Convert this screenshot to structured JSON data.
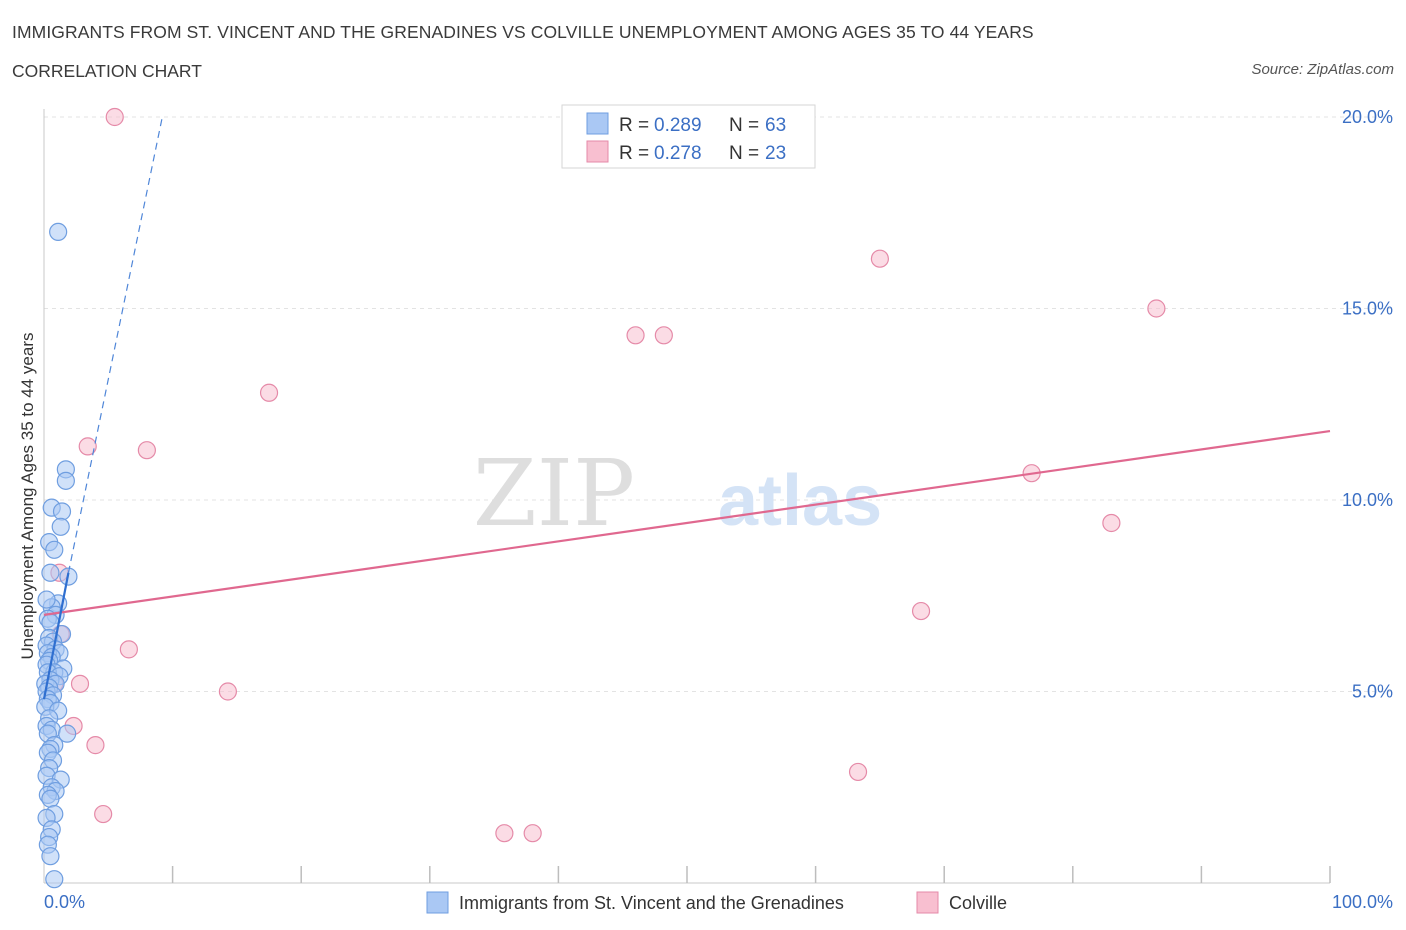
{
  "header": {
    "title": "IMMIGRANTS FROM ST. VINCENT AND THE GRENADINES VS COLVILLE UNEMPLOYMENT AMONG AGES 35 TO 44 YEARS",
    "subtitle": "CORRELATION CHART",
    "source": "Source: ZipAtlas.com"
  },
  "legend": {
    "r_label": "R = ",
    "n_label": "N = ",
    "entries": [
      {
        "r": "0.289",
        "n": "63",
        "fill": "#aac8f4",
        "stroke": "#6f9ee0"
      },
      {
        "r": "0.278",
        "n": "23",
        "fill": "#f8bfd0",
        "stroke": "#e58aa8"
      }
    ]
  },
  "watermark": {
    "zip": "ZIP",
    "atlas": "atlas"
  },
  "chart_data": {
    "type": "scatter",
    "title": "IMMIGRANTS FROM ST. VINCENT AND THE GRENADINES VS COLVILLE UNEMPLOYMENT AMONG AGES 35 TO 44 YEARS",
    "xlabel": "",
    "ylabel": "Unemployment Among Ages 35 to 44 years",
    "xlim": [
      0,
      100
    ],
    "ylim": [
      0,
      20
    ],
    "x_ticks": [
      "0.0%",
      "100.0%"
    ],
    "y_ticks": [
      {
        "value": 5,
        "label": "5.0%"
      },
      {
        "value": 10,
        "label": "10.0%"
      },
      {
        "value": 15,
        "label": "15.0%"
      },
      {
        "value": 20,
        "label": "20.0%"
      }
    ],
    "grid": true,
    "series": [
      {
        "name": "Immigrants from St. Vincent and the Grenadines",
        "color": "#6f9ee0",
        "fill": "#aac8f4",
        "trend_solid": {
          "x": [
            0,
            1.9
          ],
          "y": [
            4.8,
            8.1
          ]
        },
        "trend_dashed": {
          "x": [
            1.9,
            9.2
          ],
          "y": [
            8.1,
            20.0
          ]
        },
        "points": [
          [
            1.1,
            17.0
          ],
          [
            1.7,
            10.8
          ],
          [
            1.7,
            10.5
          ],
          [
            0.6,
            9.8
          ],
          [
            1.4,
            9.7
          ],
          [
            1.3,
            9.3
          ],
          [
            0.4,
            8.9
          ],
          [
            0.8,
            8.7
          ],
          [
            1.9,
            8.0
          ],
          [
            0.5,
            8.1
          ],
          [
            1.1,
            7.3
          ],
          [
            0.6,
            7.2
          ],
          [
            0.2,
            7.4
          ],
          [
            0.9,
            7.0
          ],
          [
            0.3,
            6.9
          ],
          [
            0.5,
            6.8
          ],
          [
            1.4,
            6.5
          ],
          [
            0.4,
            6.4
          ],
          [
            0.7,
            6.3
          ],
          [
            0.2,
            6.2
          ],
          [
            0.9,
            6.1
          ],
          [
            1.2,
            6.0
          ],
          [
            0.3,
            6.0
          ],
          [
            0.6,
            5.9
          ],
          [
            0.4,
            5.8
          ],
          [
            0.2,
            5.7
          ],
          [
            1.5,
            5.6
          ],
          [
            0.8,
            5.5
          ],
          [
            0.3,
            5.5
          ],
          [
            1.2,
            5.4
          ],
          [
            0.5,
            5.3
          ],
          [
            0.1,
            5.2
          ],
          [
            0.9,
            5.2
          ],
          [
            0.4,
            5.1
          ],
          [
            0.2,
            5.0
          ],
          [
            0.7,
            4.9
          ],
          [
            0.3,
            4.8
          ],
          [
            0.5,
            4.7
          ],
          [
            0.1,
            4.6
          ],
          [
            1.1,
            4.5
          ],
          [
            0.4,
            4.3
          ],
          [
            0.2,
            4.1
          ],
          [
            0.6,
            4.0
          ],
          [
            0.3,
            3.9
          ],
          [
            1.8,
            3.9
          ],
          [
            0.8,
            3.6
          ],
          [
            0.5,
            3.5
          ],
          [
            0.3,
            3.4
          ],
          [
            0.7,
            3.2
          ],
          [
            0.4,
            3.0
          ],
          [
            0.2,
            2.8
          ],
          [
            1.3,
            2.7
          ],
          [
            0.6,
            2.5
          ],
          [
            0.9,
            2.4
          ],
          [
            0.3,
            2.3
          ],
          [
            0.5,
            2.2
          ],
          [
            0.8,
            1.8
          ],
          [
            0.2,
            1.7
          ],
          [
            0.6,
            1.4
          ],
          [
            0.4,
            1.2
          ],
          [
            0.3,
            1.0
          ],
          [
            0.5,
            0.7
          ],
          [
            0.8,
            0.1
          ]
        ]
      },
      {
        "name": "Colville",
        "color": "#e58aa8",
        "fill": "#f8bfd0",
        "trend": {
          "x": [
            0,
            100
          ],
          "y": [
            7.0,
            11.8
          ]
        },
        "points": [
          [
            5.5,
            20.0
          ],
          [
            65.0,
            16.3
          ],
          [
            86.5,
            15.0
          ],
          [
            46.0,
            14.3
          ],
          [
            48.2,
            14.3
          ],
          [
            17.5,
            12.8
          ],
          [
            3.4,
            11.4
          ],
          [
            8.0,
            11.3
          ],
          [
            76.8,
            10.7
          ],
          [
            83.0,
            9.4
          ],
          [
            1.2,
            8.1
          ],
          [
            68.2,
            7.1
          ],
          [
            1.3,
            6.5
          ],
          [
            6.6,
            6.1
          ],
          [
            0.8,
            5.2
          ],
          [
            2.8,
            5.2
          ],
          [
            14.3,
            5.0
          ],
          [
            2.3,
            4.1
          ],
          [
            4.0,
            3.6
          ],
          [
            63.3,
            2.9
          ],
          [
            4.6,
            1.8
          ],
          [
            38.0,
            1.3
          ],
          [
            35.8,
            1.3
          ]
        ]
      }
    ]
  }
}
